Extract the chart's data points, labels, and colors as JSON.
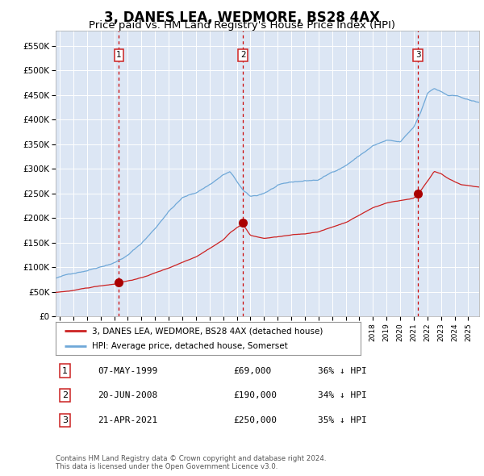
{
  "title": "3, DANES LEA, WEDMORE, BS28 4AX",
  "subtitle": "Price paid vs. HM Land Registry's House Price Index (HPI)",
  "title_fontsize": 12,
  "subtitle_fontsize": 9.5,
  "background_color": "#dce6f4",
  "ylim": [
    0,
    580000
  ],
  "yticks": [
    0,
    50000,
    100000,
    150000,
    200000,
    250000,
    300000,
    350000,
    400000,
    450000,
    500000,
    550000
  ],
  "ytick_labels": [
    "£0",
    "£50K",
    "£100K",
    "£150K",
    "£200K",
    "£250K",
    "£300K",
    "£350K",
    "£400K",
    "£450K",
    "£500K",
    "£550K"
  ],
  "xlim_start": 1994.7,
  "xlim_end": 2025.8,
  "hpi_line_color": "#6fa8d8",
  "price_line_color": "#cc2222",
  "vline_color": "#cc0000",
  "sale_dates": [
    1999.35,
    2008.46,
    2021.3
  ],
  "sale_prices": [
    69000,
    190000,
    250000
  ],
  "sale_labels": [
    "1",
    "2",
    "3"
  ],
  "legend_label_price": "3, DANES LEA, WEDMORE, BS28 4AX (detached house)",
  "legend_label_hpi": "HPI: Average price, detached house, Somerset",
  "table_rows": [
    [
      "1",
      "07-MAY-1999",
      "£69,000",
      "36% ↓ HPI"
    ],
    [
      "2",
      "20-JUN-2008",
      "£190,000",
      "34% ↓ HPI"
    ],
    [
      "3",
      "21-APR-2021",
      "£250,000",
      "35% ↓ HPI"
    ]
  ],
  "footnote": "Contains HM Land Registry data © Crown copyright and database right 2024.\nThis data is licensed under the Open Government Licence v3.0.",
  "grid_color": "#ffffff",
  "marker_color": "#aa0000"
}
